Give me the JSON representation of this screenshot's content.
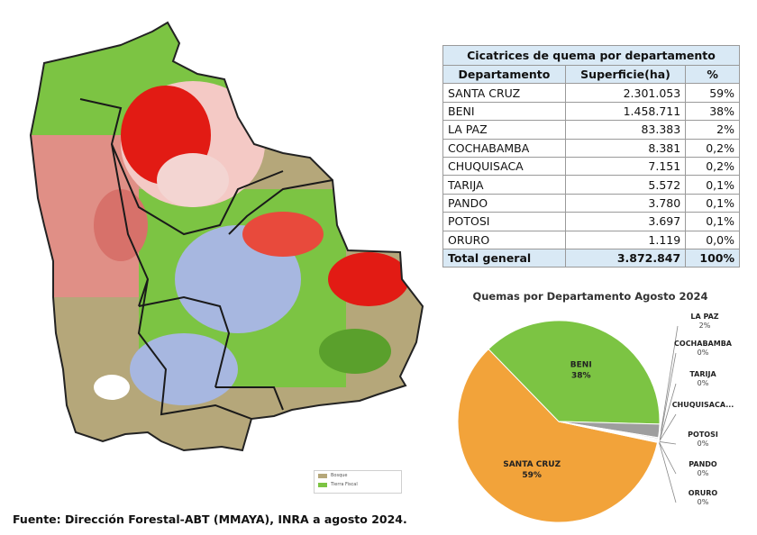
{
  "table": {
    "title": "Cicatrices de quema por departamento",
    "headers": [
      "Departamento",
      "Superficie(ha)",
      "%"
    ],
    "rows": [
      {
        "dept": "SANTA CRUZ",
        "area": "2.301.053",
        "pct": "59%"
      },
      {
        "dept": "BENI",
        "area": "1.458.711",
        "pct": "38%"
      },
      {
        "dept": "LA PAZ",
        "area": "83.383",
        "pct": "2%"
      },
      {
        "dept": "COCHABAMBA",
        "area": "8.381",
        "pct": "0,2%"
      },
      {
        "dept": "CHUQUISACA",
        "area": "7.151",
        "pct": "0,2%"
      },
      {
        "dept": "TARIJA",
        "area": "5.572",
        "pct": "0,1%"
      },
      {
        "dept": "PANDO",
        "area": "3.780",
        "pct": "0,1%"
      },
      {
        "dept": "POTOSI",
        "area": "3.697",
        "pct": "0,1%"
      },
      {
        "dept": "ORURO",
        "area": "1.119",
        "pct": "0,0%"
      }
    ],
    "total": {
      "dept": "Total general",
      "area": "3.872.847",
      "pct": "100%"
    }
  },
  "chart_data": {
    "type": "pie",
    "title": "Quemas por Departamento Agosto 2024",
    "slices": [
      {
        "name": "SANTA CRUZ",
        "label": "59%",
        "value": 59.42,
        "color": "#f2a33a"
      },
      {
        "name": "BENI",
        "label": "38%",
        "value": 37.67,
        "color": "#7cc443"
      },
      {
        "name": "LA PAZ",
        "label": "2%",
        "value": 2.15,
        "color": "#9e9e9e"
      },
      {
        "name": "COCHABAMBA",
        "label": "0%",
        "value": 0.22,
        "color": "#c9c9c9"
      },
      {
        "name": "TARIJA",
        "label": "0%",
        "value": 0.14,
        "color": "#5b8fd1"
      },
      {
        "name": "CHUQUISACA...",
        "label": "",
        "value": 0.18,
        "color": "#b5b5b5"
      },
      {
        "name": "POTOSI",
        "label": "0%",
        "value": 0.1,
        "color": "#e6c84a"
      },
      {
        "name": "PANDO",
        "label": "0%",
        "value": 0.1,
        "color": "#8d6ab8"
      },
      {
        "name": "ORURO",
        "label": "0%",
        "value": 0.03,
        "color": "#3c8a6c"
      }
    ]
  },
  "map": {
    "legend": [
      {
        "label": "Bosque",
        "color": "#b5a77a"
      },
      {
        "label": "Tierra Fiscal",
        "color": "#7cc443"
      }
    ]
  },
  "source": "Fuente: Dirección Forestal-ABT (MMAYA), INRA a agosto 2024."
}
